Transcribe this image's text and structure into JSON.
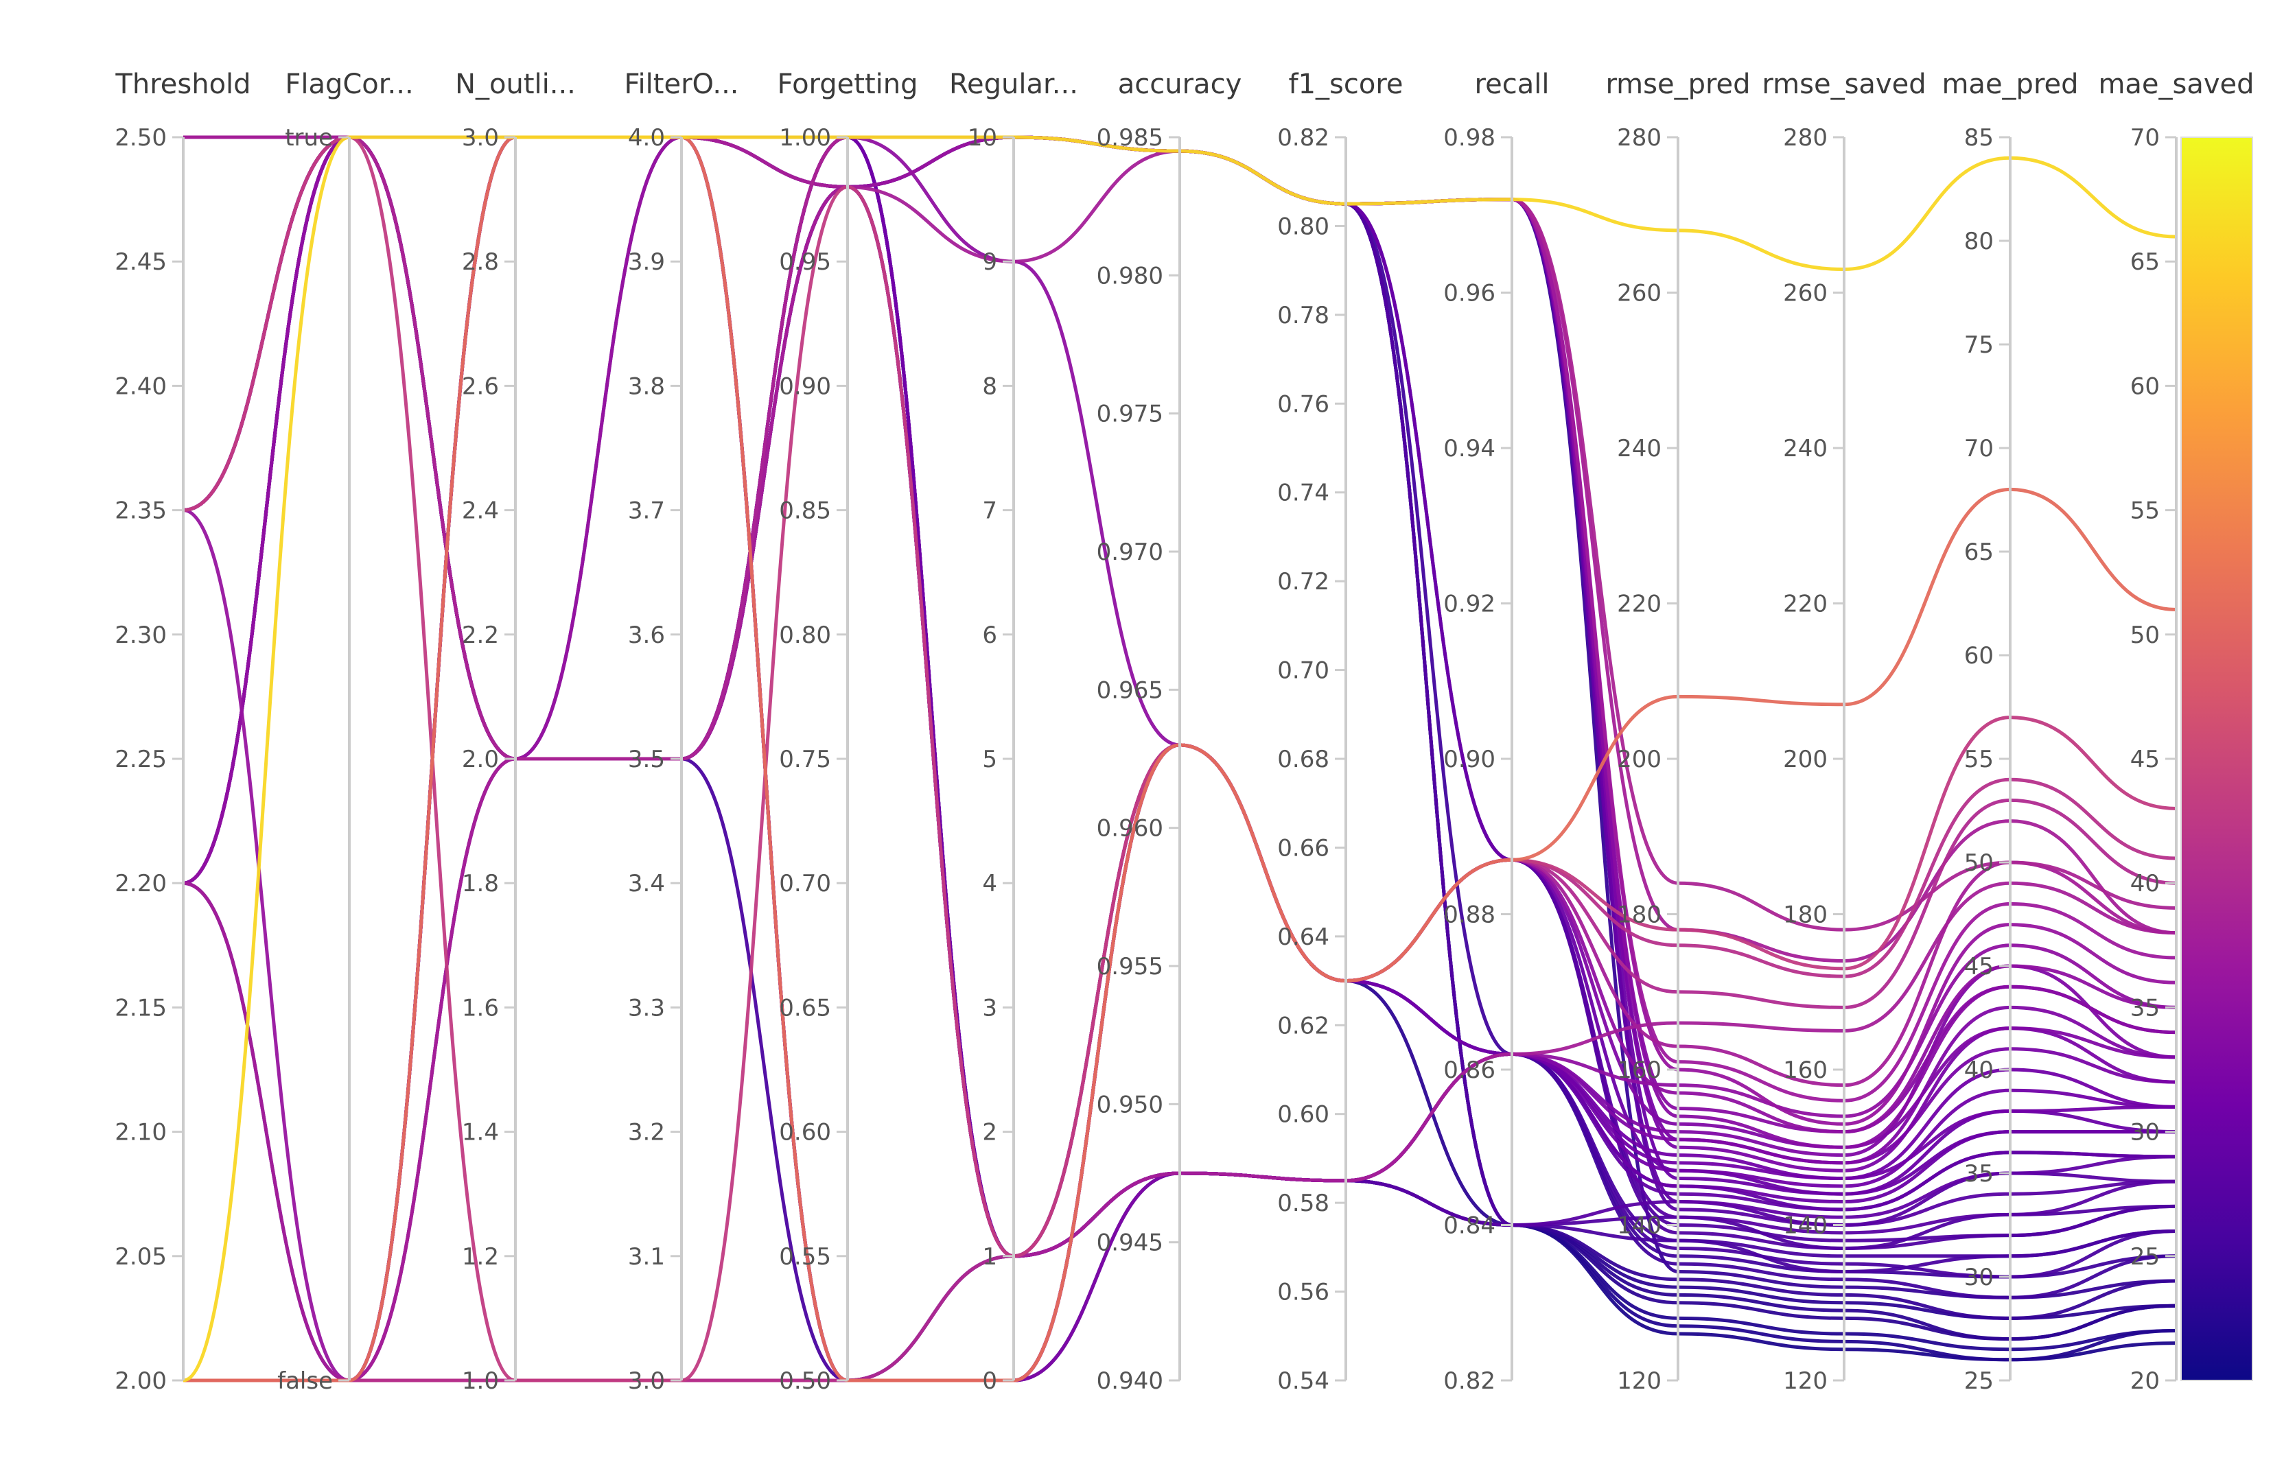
{
  "chart_data": {
    "type": "parallel_coordinates",
    "colorscale": [
      "#0d0887",
      "#46039f",
      "#7201a8",
      "#9c179e",
      "#bd3786",
      "#d8576b",
      "#ed7953",
      "#fb9f3a",
      "#fdca26",
      "#f0f921"
    ],
    "color_dimension": "mae_saved",
    "color_range": [
      20,
      70
    ],
    "axes": [
      {
        "name": "Threshold",
        "range": [
          2.0,
          2.5
        ],
        "ticks": [
          "2.00",
          "2.05",
          "2.10",
          "2.15",
          "2.20",
          "2.25",
          "2.30",
          "2.35",
          "2.40",
          "2.45",
          "2.50"
        ]
      },
      {
        "name": "FlagCor...",
        "range": [
          0,
          1
        ],
        "ticks": [
          "false",
          "true"
        ]
      },
      {
        "name": "N_outli...",
        "range": [
          1.0,
          3.0
        ],
        "ticks": [
          "1.0",
          "1.2",
          "1.4",
          "1.6",
          "1.8",
          "2.0",
          "2.2",
          "2.4",
          "2.6",
          "2.8",
          "3.0"
        ]
      },
      {
        "name": "FilterO...",
        "range": [
          3.0,
          4.0
        ],
        "ticks": [
          "3.0",
          "3.1",
          "3.2",
          "3.3",
          "3.4",
          "3.5",
          "3.6",
          "3.7",
          "3.8",
          "3.9",
          "4.0"
        ]
      },
      {
        "name": "Forgetting",
        "range": [
          0.5,
          1.0
        ],
        "ticks": [
          "0.50",
          "0.55",
          "0.60",
          "0.65",
          "0.70",
          "0.75",
          "0.80",
          "0.85",
          "0.90",
          "0.95",
          "1.00"
        ]
      },
      {
        "name": "Regular...",
        "range": [
          0,
          10
        ],
        "ticks": [
          "0",
          "1",
          "2",
          "3",
          "4",
          "5",
          "6",
          "7",
          "8",
          "9",
          "10"
        ]
      },
      {
        "name": "accuracy",
        "range": [
          0.94,
          0.985
        ],
        "ticks": [
          "0.940",
          "0.945",
          "0.950",
          "0.955",
          "0.960",
          "0.965",
          "0.970",
          "0.975",
          "0.980",
          "0.985"
        ]
      },
      {
        "name": "f1_score",
        "range": [
          0.54,
          0.82
        ],
        "ticks": [
          "0.54",
          "0.56",
          "0.58",
          "0.60",
          "0.62",
          "0.64",
          "0.66",
          "0.68",
          "0.70",
          "0.72",
          "0.74",
          "0.76",
          "0.78",
          "0.80",
          "0.82"
        ]
      },
      {
        "name": "recall",
        "range": [
          0.82,
          0.98
        ],
        "ticks": [
          "0.82",
          "0.84",
          "0.86",
          "0.88",
          "0.90",
          "0.92",
          "0.94",
          "0.96",
          "0.98"
        ]
      },
      {
        "name": "rmse_pred",
        "range": [
          120,
          280
        ],
        "ticks": [
          "120",
          "140",
          "160",
          "180",
          "200",
          "220",
          "240",
          "260",
          "280"
        ]
      },
      {
        "name": "rmse_saved",
        "range": [
          120,
          280
        ],
        "ticks": [
          "120",
          "140",
          "160",
          "180",
          "200",
          "220",
          "240",
          "260",
          "280"
        ]
      },
      {
        "name": "mae_pred",
        "range": [
          25,
          85
        ],
        "ticks": [
          "25",
          "30",
          "35",
          "40",
          "45",
          "50",
          "55",
          "60",
          "65",
          "70",
          "75",
          "80",
          "85"
        ]
      },
      {
        "name": "mae_saved",
        "range": [
          20,
          70
        ],
        "ticks": [
          "20",
          "25",
          "30",
          "35",
          "40",
          "45",
          "50",
          "55",
          "60",
          "65",
          "70"
        ]
      }
    ],
    "series": [
      {
        "values": [
          2.0,
          1,
          3.0,
          4.0,
          1.0,
          10,
          0.9845,
          0.805,
          0.972,
          268,
          263,
          84,
          66
        ]
      },
      {
        "values": [
          2.0,
          0,
          3.0,
          4.0,
          0.5,
          0,
          0.963,
          0.63,
          0.887,
          208,
          207,
          68,
          51
        ]
      },
      {
        "values": [
          2.35,
          1,
          2.0,
          3.5,
          1.0,
          10,
          0.9845,
          0.805,
          0.972,
          184,
          178,
          50,
          39
        ]
      },
      {
        "values": [
          2.2,
          0,
          2.0,
          3.5,
          0.98,
          9,
          0.9845,
          0.805,
          0.972,
          178,
          174,
          52,
          38
        ]
      },
      {
        "values": [
          2.35,
          1,
          1.0,
          3.0,
          0.98,
          1,
          0.963,
          0.63,
          0.887,
          178,
          173,
          57,
          43
        ]
      },
      {
        "values": [
          2.0,
          0,
          1.0,
          3.0,
          0.5,
          0,
          0.963,
          0.63,
          0.887,
          176,
          172,
          54,
          41
        ]
      },
      {
        "values": [
          2.0,
          0,
          1.0,
          3.0,
          0.5,
          1,
          0.963,
          0.63,
          0.887,
          170,
          168,
          53,
          40
        ]
      },
      {
        "values": [
          2.5,
          1,
          3.0,
          4.0,
          0.98,
          1,
          0.9475,
          0.585,
          0.862,
          166,
          165,
          49,
          38
        ]
      },
      {
        "values": [
          2.35,
          0,
          2.0,
          4.0,
          0.98,
          10,
          0.9845,
          0.805,
          0.972,
          160,
          153,
          47,
          36
        ]
      },
      {
        "values": [
          2.2,
          1,
          2.0,
          3.5,
          1.0,
          9,
          0.963,
          0.63,
          0.887,
          157,
          152,
          45,
          35
        ]
      },
      {
        "values": [
          2.35,
          1,
          3.0,
          4.0,
          0.98,
          10,
          0.9845,
          0.805,
          0.972,
          154,
          150,
          44,
          34
        ]
      },
      {
        "values": [
          2.2,
          1,
          2.0,
          3.5,
          0.98,
          1,
          0.9475,
          0.585,
          0.862,
          152,
          149,
          45,
          33
        ]
      },
      {
        "values": [
          2.0,
          0,
          3.0,
          4.0,
          0.5,
          0,
          0.9475,
          0.585,
          0.862,
          151,
          148,
          43,
          33
        ]
      },
      {
        "values": [
          2.5,
          1,
          3.0,
          4.0,
          1.0,
          10,
          0.9845,
          0.805,
          0.972,
          150,
          147,
          42,
          32
        ]
      },
      {
        "values": [
          2.2,
          1,
          2.0,
          3.5,
          0.98,
          1,
          0.9475,
          0.585,
          0.862,
          148,
          146,
          40,
          31
        ]
      },
      {
        "values": [
          2.35,
          1,
          3.0,
          4.0,
          0.98,
          1,
          0.963,
          0.63,
          0.862,
          147,
          145,
          39,
          31
        ]
      },
      {
        "values": [
          2.0,
          0,
          3.0,
          4.0,
          1.0,
          10,
          0.9845,
          0.805,
          0.972,
          146,
          144,
          38,
          30
        ]
      },
      {
        "values": [
          2.5,
          1,
          3.0,
          4.0,
          1.0,
          1,
          0.9475,
          0.585,
          0.862,
          145,
          143,
          37,
          30
        ]
      },
      {
        "values": [
          2.2,
          1,
          2.0,
          3.5,
          1.0,
          1,
          0.9475,
          0.585,
          0.862,
          144,
          142,
          36,
          29
        ]
      },
      {
        "values": [
          2.35,
          1,
          2.0,
          3.5,
          0.98,
          10,
          0.9845,
          0.805,
          0.972,
          143,
          141,
          35,
          29
        ]
      },
      {
        "values": [
          2.2,
          1,
          2.0,
          4.0,
          0.98,
          10,
          0.9845,
          0.805,
          0.972,
          142,
          140,
          34,
          28
        ]
      },
      {
        "values": [
          2.0,
          0,
          1.0,
          3.0,
          0.5,
          1,
          0.963,
          0.63,
          0.887,
          141,
          139,
          33,
          28
        ]
      },
      {
        "values": [
          2.5,
          1,
          3.0,
          4.0,
          1.0,
          10,
          0.9845,
          0.805,
          0.887,
          140,
          138,
          32,
          27
        ]
      },
      {
        "values": [
          2.0,
          0,
          3.0,
          4.0,
          0.5,
          0,
          0.963,
          0.63,
          0.887,
          139,
          137,
          32,
          27
        ]
      },
      {
        "values": [
          2.35,
          1,
          2.0,
          3.5,
          1.0,
          1,
          0.963,
          0.63,
          0.862,
          138,
          136,
          31,
          26
        ]
      },
      {
        "values": [
          2.2,
          0,
          2.0,
          3.5,
          0.5,
          1,
          0.9475,
          0.585,
          0.862,
          137,
          135,
          30,
          26
        ]
      },
      {
        "values": [
          2.5,
          1,
          3.0,
          4.0,
          0.98,
          10,
          0.9845,
          0.805,
          0.862,
          136,
          134,
          30,
          25
        ]
      },
      {
        "values": [
          2.0,
          0,
          1.0,
          3.0,
          0.5,
          0,
          0.963,
          0.63,
          0.862,
          135,
          133,
          29,
          25
        ]
      },
      {
        "values": [
          2.35,
          1,
          2.0,
          3.5,
          0.98,
          10,
          0.9845,
          0.805,
          0.972,
          134,
          132,
          29,
          24
        ]
      },
      {
        "values": [
          2.2,
          1,
          2.0,
          3.5,
          0.98,
          1,
          0.9475,
          0.585,
          0.84,
          133,
          131,
          28,
          24
        ]
      },
      {
        "values": [
          2.5,
          1,
          3.0,
          4.0,
          1.0,
          10,
          0.9845,
          0.805,
          0.84,
          132,
          130,
          28,
          23
        ]
      },
      {
        "values": [
          2.0,
          0,
          3.0,
          4.0,
          0.5,
          0,
          0.963,
          0.63,
          0.84,
          131,
          129,
          27,
          23
        ]
      },
      {
        "values": [
          2.35,
          1,
          2.0,
          3.5,
          0.98,
          1,
          0.9475,
          0.585,
          0.84,
          130,
          128,
          27,
          23
        ]
      },
      {
        "values": [
          2.2,
          1,
          2.0,
          3.5,
          1.0,
          10,
          0.9845,
          0.805,
          0.84,
          128,
          126,
          26.5,
          22
        ]
      },
      {
        "values": [
          2.5,
          1,
          3.0,
          4.0,
          0.98,
          10,
          0.9845,
          0.805,
          0.84,
          127,
          125,
          26,
          22
        ]
      },
      {
        "values": [
          2.0,
          0,
          1.0,
          3.0,
          0.5,
          0,
          0.9475,
          0.585,
          0.84,
          126,
          124,
          26,
          21.5
        ]
      },
      {
        "values": [
          2.35,
          1,
          2.0,
          3.5,
          1.0,
          1,
          0.9475,
          0.585,
          0.84,
          138,
          134,
          31,
          26
        ]
      },
      {
        "values": [
          2.2,
          1,
          2.0,
          3.5,
          0.98,
          10,
          0.9845,
          0.805,
          0.84,
          141,
          137,
          33,
          27
        ]
      },
      {
        "values": [
          2.5,
          1,
          3.0,
          4.0,
          1.0,
          1,
          0.9475,
          0.585,
          0.84,
          143,
          140,
          35,
          28
        ]
      },
      {
        "values": [
          2.0,
          0,
          3.0,
          4.0,
          0.5,
          0,
          0.963,
          0.63,
          0.862,
          145,
          142,
          36,
          29
        ]
      },
      {
        "values": [
          2.35,
          1,
          2.0,
          3.5,
          0.98,
          10,
          0.9845,
          0.805,
          0.887,
          147,
          144,
          37,
          30
        ]
      },
      {
        "values": [
          2.2,
          1,
          2.0,
          3.5,
          1.0,
          1,
          0.9475,
          0.585,
          0.862,
          149,
          146,
          38,
          31
        ]
      },
      {
        "values": [
          2.5,
          1,
          3.0,
          4.0,
          0.98,
          10,
          0.9845,
          0.805,
          0.972,
          151,
          148,
          41,
          32
        ]
      },
      {
        "values": [
          2.0,
          0,
          1.0,
          3.0,
          0.5,
          0,
          0.963,
          0.63,
          0.887,
          153,
          150,
          42,
          33
        ]
      },
      {
        "values": [
          2.35,
          1,
          2.0,
          3.5,
          1.0,
          10,
          0.9845,
          0.805,
          0.972,
          155,
          152,
          44,
          34
        ]
      },
      {
        "values": [
          2.2,
          1,
          2.0,
          3.5,
          0.98,
          1,
          0.9475,
          0.585,
          0.862,
          158,
          154,
          46,
          35
        ]
      },
      {
        "values": [
          2.5,
          1,
          3.0,
          4.0,
          1.0,
          10,
          0.9845,
          0.805,
          0.972,
          161,
          156,
          48,
          37
        ]
      },
      {
        "values": [
          2.0,
          0,
          3.0,
          4.0,
          0.5,
          0,
          0.963,
          0.63,
          0.887,
          163,
          158,
          50,
          38
        ]
      }
    ]
  }
}
